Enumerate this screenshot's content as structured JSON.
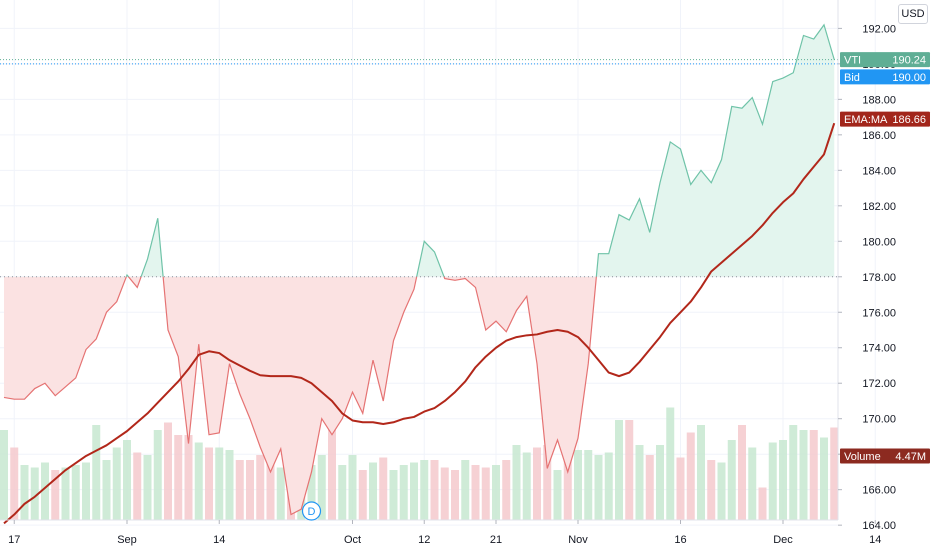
{
  "ui": {
    "currency_button": "USD",
    "event_marker": "D"
  },
  "colors": {
    "up_line": "#6fc3a8",
    "up_fill": "#e3f5ee",
    "down_line": "#e57373",
    "down_fill": "#fbe2e2",
    "ema": "#b2271a",
    "volume_up": "#c7e7d0",
    "volume_down": "#f4c9cc",
    "grid": "#f0f3fa",
    "baseline": "#8a8f99",
    "bid": "#2196f3",
    "price_label": "#5fae95",
    "ema_label": "#a2261b",
    "volume_label": "#8c2a20"
  },
  "chart_data": {
    "type": "line",
    "style": "baseline",
    "baseline_value": 178.0,
    "ylim": [
      162.6,
      193.6
    ],
    "y_ticks": [
      164,
      166,
      168,
      170,
      172,
      174,
      176,
      178,
      180,
      182,
      184,
      186,
      188,
      190,
      192
    ],
    "x_ticks": [
      {
        "label": "17",
        "index": 1
      },
      {
        "label": "Sep",
        "index": 12
      },
      {
        "label": "14",
        "index": 21
      },
      {
        "label": "Oct",
        "index": 34
      },
      {
        "label": "12",
        "index": 41
      },
      {
        "label": "21",
        "index": 48
      },
      {
        "label": "Nov",
        "index": 56
      },
      {
        "label": "16",
        "index": 66
      },
      {
        "label": "Dec",
        "index": 76
      },
      {
        "label": "14",
        "index": 85
      }
    ],
    "price_series": {
      "name": "VTI",
      "values": [
        171.2,
        171.1,
        171.1,
        171.7,
        172.0,
        171.3,
        171.8,
        172.3,
        173.9,
        174.5,
        176.0,
        176.6,
        178.1,
        177.4,
        179.0,
        181.3,
        175.0,
        173.5,
        168.6,
        174.2,
        169.1,
        169.2,
        173.1,
        171.4,
        170.0,
        168.4,
        167.0,
        168.3,
        164.6,
        164.9,
        167.0,
        170.0,
        169.1,
        170.0,
        171.5,
        170.3,
        173.3,
        171.0,
        174.4,
        176.0,
        177.3,
        180.0,
        179.4,
        177.9,
        177.8,
        177.9,
        177.4,
        175.0,
        175.5,
        174.9,
        176.1,
        176.9,
        173.1,
        167.2,
        168.8,
        167.0,
        168.9,
        173.1,
        179.3,
        179.3,
        181.5,
        181.2,
        182.4,
        180.5,
        183.3,
        185.6,
        185.2,
        183.2,
        184.0,
        183.3,
        184.6,
        187.6,
        187.5,
        188.1,
        186.6,
        189.0,
        189.2,
        189.5,
        191.6,
        191.4,
        192.2,
        190.24
      ]
    },
    "ema_series": {
      "name": "EMA:MA",
      "values": [
        164.1,
        164.6,
        165.2,
        165.6,
        166.1,
        166.6,
        167.1,
        167.5,
        167.9,
        168.2,
        168.5,
        168.9,
        169.3,
        169.8,
        170.3,
        170.9,
        171.5,
        172.1,
        172.8,
        173.6,
        173.8,
        173.7,
        173.3,
        173.0,
        172.7,
        172.45,
        172.4,
        172.4,
        172.4,
        172.3,
        172.0,
        171.5,
        171.0,
        170.3,
        169.9,
        169.8,
        169.8,
        169.7,
        169.8,
        170.0,
        170.1,
        170.4,
        170.6,
        171.0,
        171.5,
        172.1,
        172.9,
        173.5,
        174.0,
        174.4,
        174.6,
        174.7,
        174.75,
        174.9,
        175.0,
        174.9,
        174.6,
        174.0,
        173.3,
        172.6,
        172.4,
        172.6,
        173.2,
        173.9,
        174.6,
        175.4,
        176.0,
        176.6,
        177.4,
        178.3,
        178.8,
        179.3,
        179.8,
        180.3,
        180.9,
        181.6,
        182.2,
        182.7,
        183.5,
        184.2,
        184.9,
        186.66
      ]
    },
    "volume_series": {
      "name": "Volume",
      "values": [
        3.6,
        2.9,
        2.2,
        2.1,
        2.3,
        2.0,
        2.1,
        2.2,
        2.3,
        3.8,
        2.4,
        2.9,
        3.2,
        2.7,
        2.6,
        3.6,
        3.9,
        3.4,
        3.4,
        3.1,
        2.9,
        2.9,
        2.8,
        2.4,
        2.4,
        2.6,
        3.0,
        2.1,
        2.0,
        2.4,
        2.2,
        2.6,
        3.6,
        2.2,
        2.6,
        2.0,
        2.3,
        2.5,
        2.0,
        2.2,
        2.3,
        2.4,
        2.4,
        2.1,
        2.0,
        2.4,
        2.2,
        2.1,
        2.2,
        2.4,
        3.0,
        2.7,
        2.9,
        3.0,
        2.0,
        3.2,
        2.8,
        2.8,
        2.6,
        2.7,
        4.0,
        4.0,
        3.0,
        2.6,
        3.0,
        4.5,
        2.5,
        3.5,
        3.8,
        2.4,
        2.3,
        3.2,
        3.8,
        2.9,
        1.3,
        3.1,
        3.2,
        3.8,
        3.6,
        3.6,
        3.3,
        3.7
      ]
    },
    "labels": {
      "price": {
        "name": "VTI",
        "value": "190.24"
      },
      "bid": {
        "name": "Bid",
        "value": "190.00"
      },
      "ema": {
        "name": "EMA:MA",
        "value": "186.66"
      },
      "volume": {
        "name": "Volume",
        "value": "4.47M"
      }
    },
    "bid_value": 190.0,
    "volume_label_level": 167.9,
    "grid": true
  }
}
